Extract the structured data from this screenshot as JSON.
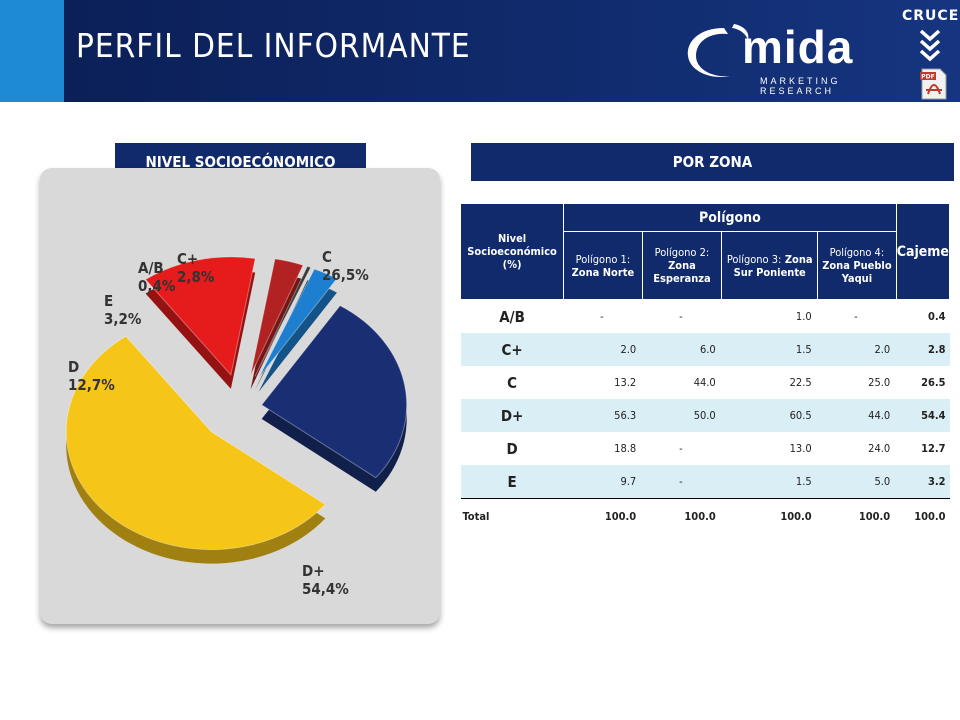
{
  "header": {
    "title": "PERFIL DEL INFORMANTE",
    "brand": "mida",
    "brand_sub": "MARKETING RESEARCH",
    "cruces": "CRUCES"
  },
  "colors": {
    "navy": "#102a6b",
    "accent": "#1e8ad6",
    "alt_row": "#daeef5"
  },
  "icons": [
    "cruces-chevrons-icon",
    "pdf-icon",
    "omida-swoosh-icon"
  ],
  "sections": {
    "left_title": "NIVEL SOCIOECÓNOMICO",
    "right_title": "POR ZONA"
  },
  "chart_data": {
    "type": "pie",
    "slices": [
      {
        "label": "C",
        "value": 26.5,
        "value_text": "26,5%",
        "color": "#1a2f73"
      },
      {
        "label": "D+",
        "value": 54.4,
        "value_text": "54,4%",
        "color": "#f5c518"
      },
      {
        "label": "D",
        "value": 12.7,
        "value_text": "12,7%",
        "color": "#e61b1b"
      },
      {
        "label": "E",
        "value": 3.2,
        "value_text": "3,2%",
        "color": "#b22222"
      },
      {
        "label": "A/B",
        "value": 0.4,
        "value_text": "0,4%",
        "color": "#3a3a3a"
      },
      {
        "label": "C+",
        "value": 2.8,
        "value_text": "2,8%",
        "color": "#1e7fd0"
      }
    ]
  },
  "table": {
    "corner_header": "Nivel Socioeconómico (%)",
    "group_header": "Polígono",
    "last_header": "Cajeme",
    "columns": [
      {
        "prefix": "Polígono 1:",
        "name": "Zona Norte"
      },
      {
        "prefix": "Polígono 2:",
        "name": "Zona Esperanza"
      },
      {
        "prefix": "Polígono 3:",
        "name": "Zona Sur Poniente"
      },
      {
        "prefix": "Polígono 4:",
        "name": "Zona Pueblo Yaqui"
      }
    ],
    "rows": [
      {
        "label": "A/B",
        "values": [
          "-",
          "-",
          "1.0",
          "-"
        ],
        "cajeme": "0.4"
      },
      {
        "label": "C+",
        "values": [
          "2.0",
          "6.0",
          "1.5",
          "2.0"
        ],
        "cajeme": "2.8"
      },
      {
        "label": "C",
        "values": [
          "13.2",
          "44.0",
          "22.5",
          "25.0"
        ],
        "cajeme": "26.5"
      },
      {
        "label": "D+",
        "values": [
          "56.3",
          "50.0",
          "60.5",
          "44.0"
        ],
        "cajeme": "54.4"
      },
      {
        "label": "D",
        "values": [
          "18.8",
          "-",
          "13.0",
          "24.0"
        ],
        "cajeme": "12.7"
      },
      {
        "label": "E",
        "values": [
          "9.7",
          "-",
          "1.5",
          "5.0"
        ],
        "cajeme": "3.2"
      }
    ],
    "total": {
      "label": "Total",
      "values": [
        "100.0",
        "100.0",
        "100.0",
        "100.0"
      ],
      "cajeme": "100.0"
    }
  }
}
